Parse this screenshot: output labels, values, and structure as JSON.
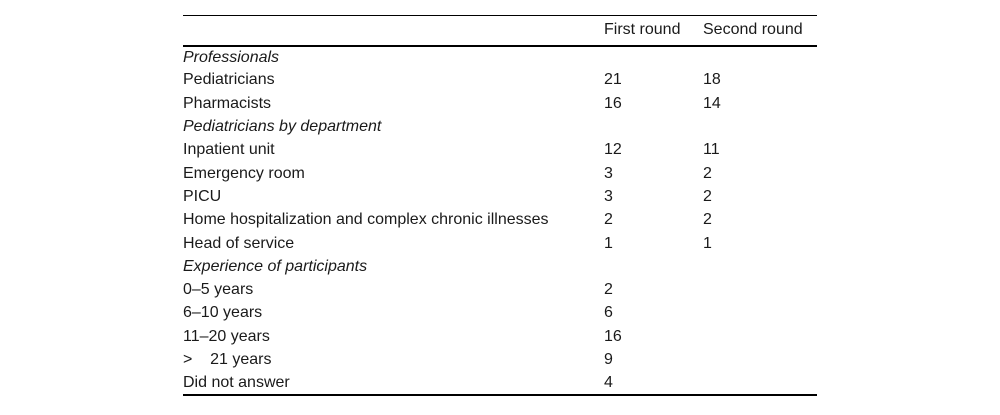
{
  "table": {
    "columns": [
      "First round",
      "Second round"
    ],
    "rows": [
      {
        "label": "Professionals",
        "section": true,
        "first": "",
        "second": ""
      },
      {
        "label": "Pediatricians",
        "section": false,
        "first": "21",
        "second": "18"
      },
      {
        "label": "Pharmacists",
        "section": false,
        "first": "16",
        "second": "14"
      },
      {
        "label": "Pediatricians by department",
        "section": true,
        "first": "",
        "second": ""
      },
      {
        "label": "Inpatient unit",
        "section": false,
        "first": "12",
        "second": "11"
      },
      {
        "label": "Emergency room",
        "section": false,
        "first": "3",
        "second": "2"
      },
      {
        "label": "PICU",
        "section": false,
        "first": "3",
        "second": "2"
      },
      {
        "label": "Home hospitalization and complex chronic illnesses",
        "section": false,
        "first": "2",
        "second": "2"
      },
      {
        "label": "Head of service",
        "section": false,
        "first": "1",
        "second": "1"
      },
      {
        "label": "Experience of participants",
        "section": true,
        "first": "",
        "second": ""
      },
      {
        "label": "0–5 years",
        "section": false,
        "first": "2",
        "second": ""
      },
      {
        "label": "6–10 years",
        "section": false,
        "first": "6",
        "second": ""
      },
      {
        "label": "11–20 years",
        "section": false,
        "first": "16",
        "second": ""
      },
      {
        "label": ">    21 years",
        "section": false,
        "first": "9",
        "second": ""
      },
      {
        "label": "Did not answer",
        "section": false,
        "first": "4",
        "second": ""
      }
    ]
  }
}
